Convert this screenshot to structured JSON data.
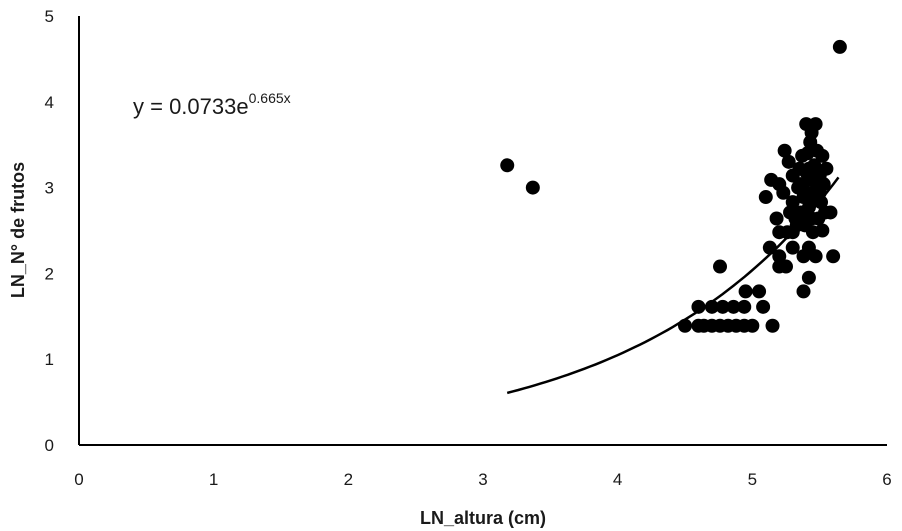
{
  "chart_data": {
    "type": "scatter",
    "xlabel": "LN_altura (cm)",
    "ylabel": "LN_N° de frutos",
    "xlim": [
      0,
      6
    ],
    "ylim": [
      0,
      5
    ],
    "x_ticks": [
      "0",
      "1",
      "2",
      "3",
      "4",
      "5",
      "6"
    ],
    "y_ticks": [
      "0",
      "1",
      "2",
      "3",
      "4",
      "5"
    ],
    "grid": false,
    "trendline": {
      "type": "exponential",
      "a": 0.0733,
      "b": 0.665,
      "x_range": [
        3.18,
        5.64
      ],
      "equation_prefix": "y = 0.0733e",
      "equation_exponent": "0.665x"
    },
    "points": [
      {
        "x": 3.18,
        "y": 3.26
      },
      {
        "x": 3.37,
        "y": 3.0
      },
      {
        "x": 5.65,
        "y": 4.64
      },
      {
        "x": 4.5,
        "y": 1.39
      },
      {
        "x": 4.6,
        "y": 1.39
      },
      {
        "x": 4.64,
        "y": 1.39
      },
      {
        "x": 4.7,
        "y": 1.39
      },
      {
        "x": 4.76,
        "y": 1.39
      },
      {
        "x": 4.82,
        "y": 1.39
      },
      {
        "x": 4.88,
        "y": 1.39
      },
      {
        "x": 4.94,
        "y": 1.39
      },
      {
        "x": 5.0,
        "y": 1.39
      },
      {
        "x": 5.15,
        "y": 1.39
      },
      {
        "x": 4.6,
        "y": 1.61
      },
      {
        "x": 4.7,
        "y": 1.61
      },
      {
        "x": 4.78,
        "y": 1.61
      },
      {
        "x": 4.86,
        "y": 1.61
      },
      {
        "x": 4.94,
        "y": 1.61
      },
      {
        "x": 5.08,
        "y": 1.61
      },
      {
        "x": 4.95,
        "y": 1.79
      },
      {
        "x": 5.05,
        "y": 1.79
      },
      {
        "x": 4.76,
        "y": 2.08
      },
      {
        "x": 5.13,
        "y": 2.3
      },
      {
        "x": 5.2,
        "y": 2.08
      },
      {
        "x": 5.25,
        "y": 2.08
      },
      {
        "x": 5.3,
        "y": 2.3
      },
      {
        "x": 5.2,
        "y": 2.2
      },
      {
        "x": 5.3,
        "y": 2.48
      },
      {
        "x": 5.2,
        "y": 2.48
      },
      {
        "x": 5.18,
        "y": 2.64
      },
      {
        "x": 5.1,
        "y": 2.89
      },
      {
        "x": 5.14,
        "y": 3.09
      },
      {
        "x": 5.2,
        "y": 3.04
      },
      {
        "x": 5.23,
        "y": 2.94
      },
      {
        "x": 5.24,
        "y": 3.43
      },
      {
        "x": 5.27,
        "y": 3.3
      },
      {
        "x": 5.3,
        "y": 3.14
      },
      {
        "x": 5.3,
        "y": 2.83
      },
      {
        "x": 5.32,
        "y": 2.64
      },
      {
        "x": 5.34,
        "y": 3.0
      },
      {
        "x": 5.35,
        "y": 3.22
      },
      {
        "x": 5.36,
        "y": 2.71
      },
      {
        "x": 5.37,
        "y": 3.37
      },
      {
        "x": 5.38,
        "y": 1.79
      },
      {
        "x": 5.38,
        "y": 2.2
      },
      {
        "x": 5.39,
        "y": 2.56
      },
      {
        "x": 5.4,
        "y": 2.94
      },
      {
        "x": 5.4,
        "y": 3.18
      },
      {
        "x": 5.4,
        "y": 3.74
      },
      {
        "x": 5.41,
        "y": 3.4
      },
      {
        "x": 5.42,
        "y": 1.95
      },
      {
        "x": 5.42,
        "y": 2.3
      },
      {
        "x": 5.42,
        "y": 2.77
      },
      {
        "x": 5.43,
        "y": 3.09
      },
      {
        "x": 5.43,
        "y": 3.53
      },
      {
        "x": 5.44,
        "y": 3.64
      },
      {
        "x": 5.45,
        "y": 2.48
      },
      {
        "x": 5.45,
        "y": 2.89
      },
      {
        "x": 5.46,
        "y": 3.26
      },
      {
        "x": 5.47,
        "y": 3.74
      },
      {
        "x": 5.47,
        "y": 2.2
      },
      {
        "x": 5.48,
        "y": 3.0
      },
      {
        "x": 5.48,
        "y": 3.43
      },
      {
        "x": 5.49,
        "y": 2.64
      },
      {
        "x": 5.5,
        "y": 3.14
      },
      {
        "x": 5.51,
        "y": 2.83
      },
      {
        "x": 5.52,
        "y": 3.37
      },
      {
        "x": 5.52,
        "y": 2.5
      },
      {
        "x": 5.53,
        "y": 3.04
      },
      {
        "x": 5.54,
        "y": 2.71
      },
      {
        "x": 5.55,
        "y": 3.22
      },
      {
        "x": 5.45,
        "y": 3.14
      },
      {
        "x": 5.38,
        "y": 2.89
      },
      {
        "x": 5.33,
        "y": 2.56
      },
      {
        "x": 5.28,
        "y": 2.71
      },
      {
        "x": 5.26,
        "y": 2.48
      },
      {
        "x": 5.42,
        "y": 3.22
      },
      {
        "x": 5.36,
        "y": 3.04
      },
      {
        "x": 5.58,
        "y": 2.71
      },
      {
        "x": 5.6,
        "y": 2.2
      },
      {
        "x": 5.44,
        "y": 2.64
      },
      {
        "x": 5.5,
        "y": 2.94
      }
    ]
  }
}
